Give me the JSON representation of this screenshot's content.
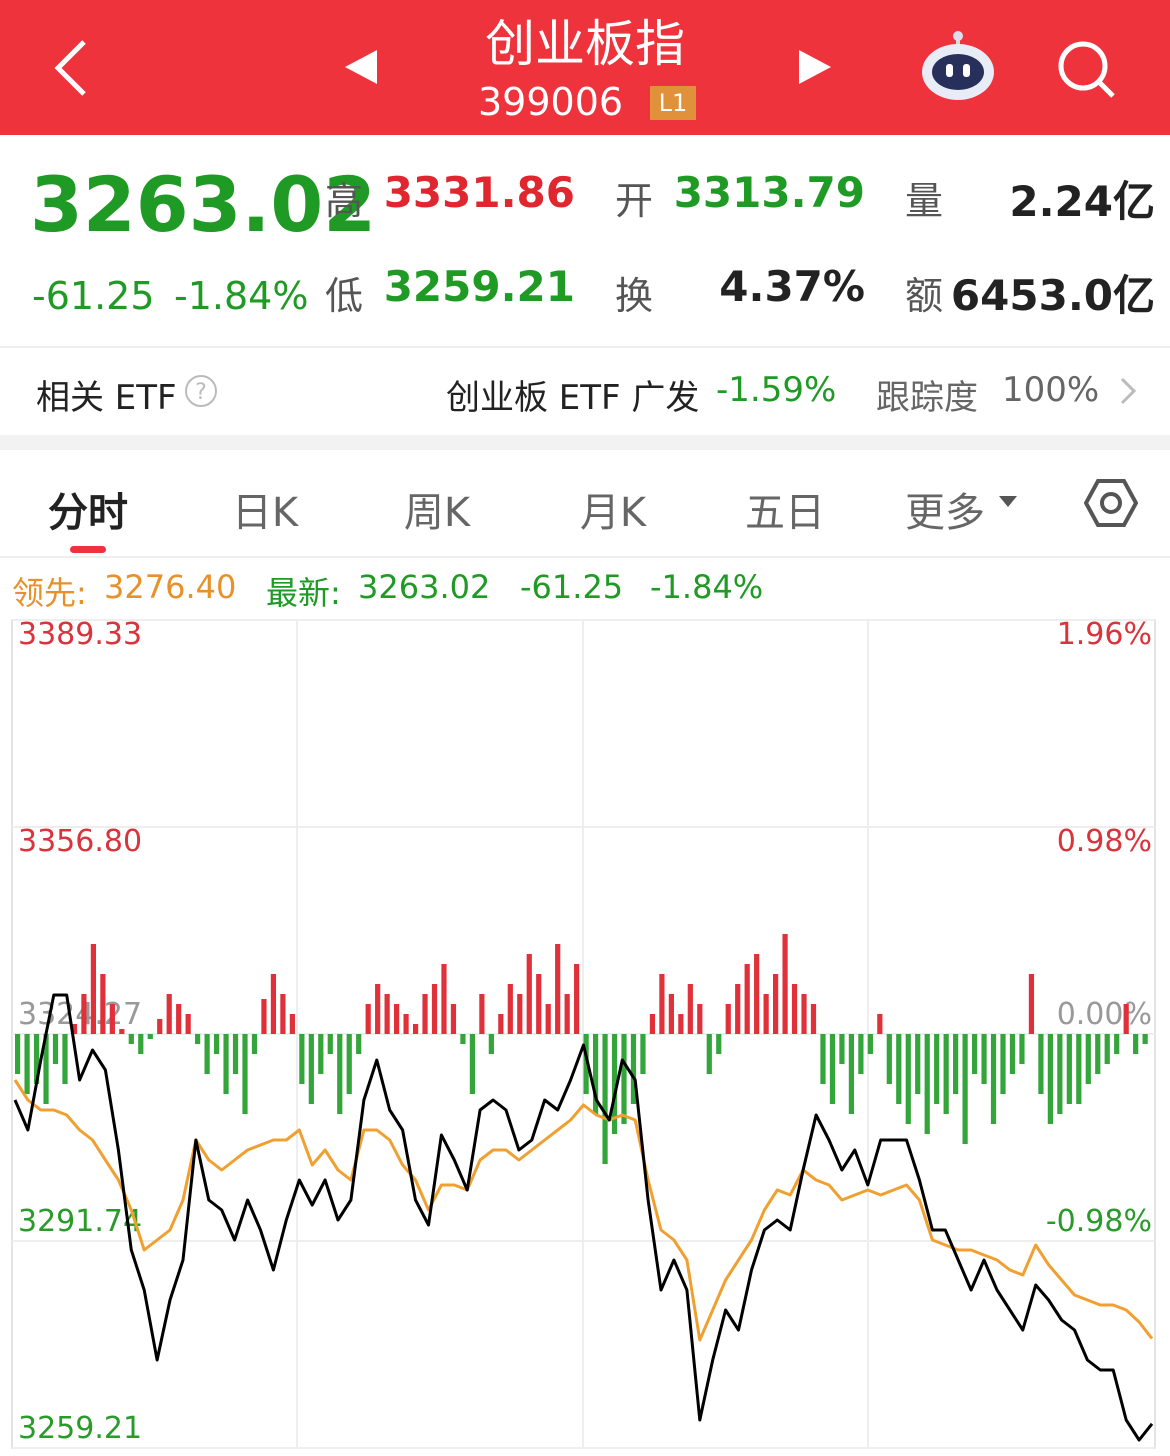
{
  "header": {
    "title": "创业板指",
    "code": "399006",
    "badge": "L1"
  },
  "quote": {
    "price": "3263.02",
    "change": "-61.25",
    "change_pct": "-1.84%",
    "stats": [
      {
        "label": "高",
        "value": "3331.86"
      },
      {
        "label": "开",
        "value": "3313.79"
      },
      {
        "label": "量",
        "value": "2.24亿"
      },
      {
        "label": "低",
        "value": "3259.21"
      },
      {
        "label": "换",
        "value": "4.37%"
      },
      {
        "label": "额",
        "value": "6453.0亿"
      }
    ]
  },
  "etf": {
    "label": "相关 ETF",
    "name": "创业板 ETF 广发",
    "change": "-1.59%",
    "tracking_label": "跟踪度",
    "tracking": "100%"
  },
  "tabs": [
    "分时",
    "日K",
    "周K",
    "月K",
    "五日",
    "更多"
  ],
  "legend": {
    "lead_label": "领先:",
    "lead": "3276.40",
    "last_label": "最新:",
    "last": "3263.02",
    "change": "-61.25",
    "change_pct": "-1.84%"
  },
  "chart_data": {
    "type": "line",
    "ylim": [
      3259.21,
      3389.33
    ],
    "yticks": [
      3259.21,
      3291.74,
      3324.27,
      {
        "value": 3356.8,
        "label": "3356.80"
      },
      3389.33
    ],
    "y2lim": [
      -1.96,
      1.96
    ],
    "y2ticks": [
      {
        "value": -0.98,
        "label": "-0.98%"
      },
      {
        "value": 0,
        "label": "0.00%"
      },
      {
        "value": 0.98,
        "label": "0.98%"
      },
      {
        "value": 1.96,
        "label": "1.96%"
      }
    ],
    "grid": true,
    "series": [
      {
        "color": "#000000",
        "values": [
          3313.9,
          3309.18,
          3320.18,
          3330.4,
          3330.4,
          3317.04,
          3321.76,
          3318.61,
          3306.04,
          3290.33,
          3284.04,
          3273.04,
          3282.47,
          3288.75,
          3307.61,
          3298.18,
          3296.61,
          3291.9,
          3298.18,
          3293.47,
          3287.18,
          3295.04,
          3301.33,
          3297.4,
          3301.33,
          3295.04,
          3298.18,
          3313.9,
          3320.18,
          3312.33,
          3309.18,
          3298.18,
          3294.25,
          3308.4,
          3304.47,
          3299.75,
          3312.33,
          3313.9,
          3312.33,
          3306.04,
          3307.61,
          3313.9,
          3312.33,
          3317.04,
          3322.54,
          3313.9,
          3310.75,
          3320.18,
          3317.04,
          3298.18,
          3284.04,
          3288.75,
          3284.04,
          3263.61,
          3273.04,
          3280.9,
          3277.75,
          3287.18,
          3293.47,
          3295.04,
          3293.47,
          3302.9,
          3311.54,
          3307.61,
          3302.9,
          3306.04,
          3300.54,
          3307.61,
          3307.61,
          3307.61,
          3301.33,
          3293.47,
          3293.47,
          3288.75,
          3284.04,
          3288.75,
          3284.04,
          3280.9,
          3277.75,
          3284.83,
          3282.47,
          3279.33,
          3277.75,
          3273.04,
          3271.47,
          3271.47,
          3263.61,
          3260.47,
          3263.02
        ]
      },
      {
        "color": "#f0a030",
        "values": [
          3317.04,
          3313.9,
          3312.33,
          3312.33,
          3311.54,
          3309.18,
          3307.61,
          3304.47,
          3301.33,
          3296.61,
          3290.33,
          3291.9,
          3293.47,
          3298.18,
          3307.61,
          3304.47,
          3302.9,
          3304.47,
          3306.04,
          3306.83,
          3307.61,
          3307.61,
          3309.18,
          3303.68,
          3306.04,
          3302.9,
          3301.33,
          3309.18,
          3309.18,
          3307.61,
          3303.68,
          3301.33,
          3296.61,
          3300.54,
          3300.54,
          3299.75,
          3304.47,
          3306.04,
          3306.04,
          3304.47,
          3306.04,
          3307.61,
          3309.18,
          3310.75,
          3313.11,
          3311.54,
          3310.75,
          3311.54,
          3310.75,
          3301.33,
          3293.47,
          3291.9,
          3288.75,
          3276.18,
          3280.9,
          3285.61,
          3288.75,
          3291.9,
          3296.61,
          3299.75,
          3298.97,
          3302.9,
          3301.33,
          3300.54,
          3298.18,
          3298.97,
          3299.75,
          3298.97,
          3299.75,
          3300.54,
          3298.18,
          3291.9,
          3291.11,
          3290.33,
          3290.33,
          3289.54,
          3288.75,
          3287.18,
          3286.4,
          3291.11,
          3288.0,
          3285.61,
          3283.26,
          3282.47,
          3281.68,
          3281.68,
          3280.9,
          3279.01,
          3276.4
        ]
      }
    ],
    "volume": {
      "up_color": "#e0313a",
      "down_color": "#33a53a",
      "values": [
        -40,
        -60,
        -50,
        -70,
        -30,
        -50,
        10,
        40,
        90,
        60,
        30,
        5,
        -10,
        -20,
        -5,
        15,
        40,
        30,
        20,
        -10,
        -40,
        -20,
        -60,
        -40,
        -80,
        -20,
        35,
        60,
        40,
        20,
        -50,
        -70,
        -40,
        -20,
        -80,
        -60,
        -20,
        30,
        50,
        40,
        30,
        20,
        10,
        40,
        50,
        70,
        30,
        -10,
        -60,
        40,
        -20,
        20,
        50,
        40,
        80,
        60,
        30,
        90,
        40,
        70,
        -60,
        -80,
        -130,
        -100,
        -90,
        -70,
        -40,
        20,
        60,
        40,
        20,
        50,
        30,
        -40,
        -20,
        30,
        50,
        70,
        80,
        40,
        60,
        100,
        50,
        40,
        30,
        -50,
        -70,
        -30,
        -80,
        -40,
        -20,
        20,
        -50,
        -70,
        -90,
        -60,
        -100,
        -70,
        -80,
        -60,
        -110,
        -40,
        -50,
        -90,
        -60,
        -40,
        -30,
        60,
        -60,
        -90,
        -80,
        -70,
        -70,
        -50,
        -40,
        -30,
        -20,
        30,
        -20,
        -10
      ]
    }
  }
}
